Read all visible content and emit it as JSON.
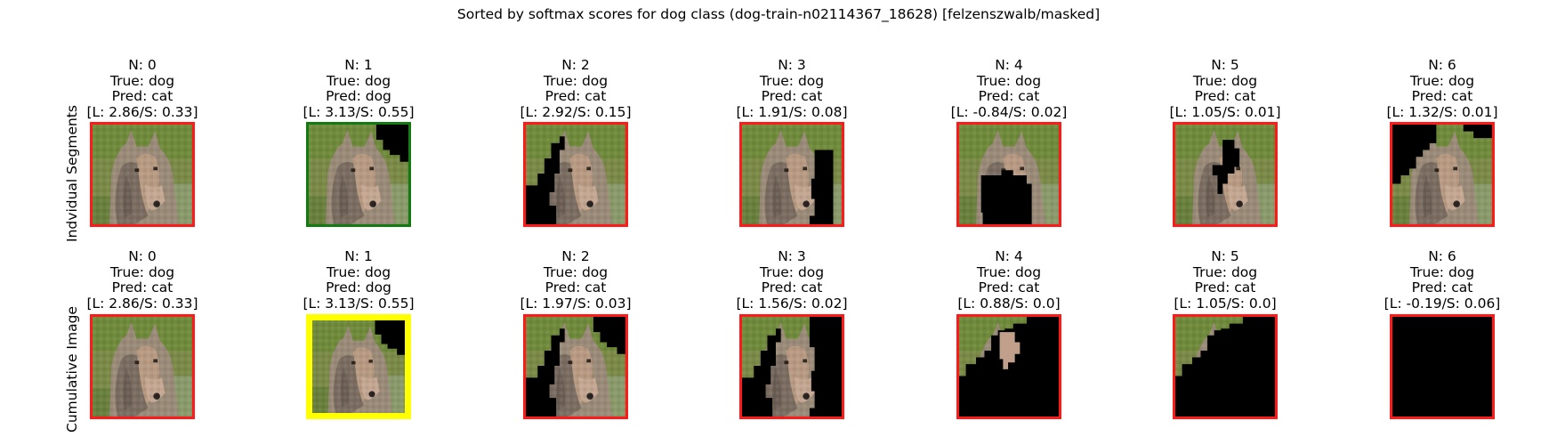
{
  "title": "Sorted by softmax scores for dog class (dog-train-n02114367_18628) [felzenszwalb/masked]",
  "row_labels": [
    "Indvidual Segments",
    "Cumulative Image"
  ],
  "colors": {
    "wrong": "#ff1a1a",
    "correct": "#117a11",
    "best": "#ffff00",
    "masked": "#000000"
  },
  "rows": [
    {
      "panels": [
        {
          "n": "N: 0",
          "true": "True: dog",
          "pred": "Pred: cat",
          "score": "[L: 2.86/S: 0.33]",
          "border": "wrong",
          "mask": "none"
        },
        {
          "n": "N: 1",
          "true": "True: dog",
          "pred": "Pred: dog",
          "score": "[L: 3.13/S: 0.55]",
          "border": "correct",
          "mask": "top-right"
        },
        {
          "n": "N: 2",
          "true": "True: dog",
          "pred": "Pred: cat",
          "score": "[L: 2.92/S: 0.15]",
          "border": "wrong",
          "mask": "left-bottom"
        },
        {
          "n": "N: 3",
          "true": "True: dog",
          "pred": "Pred: cat",
          "score": "[L: 1.91/S: 0.08]",
          "border": "wrong",
          "mask": "right"
        },
        {
          "n": "N: 4",
          "true": "True: dog",
          "pred": "Pred: cat",
          "score": "[L: -0.84/S: 0.02]",
          "border": "wrong",
          "mask": "center"
        },
        {
          "n": "N: 5",
          "true": "True: dog",
          "pred": "Pred: cat",
          "score": "[L: 1.05/S: 0.01]",
          "border": "wrong",
          "mask": "center-right"
        },
        {
          "n": "N: 6",
          "true": "True: dog",
          "pred": "Pred: cat",
          "score": "[L: 1.32/S: 0.01]",
          "border": "wrong",
          "mask": "top-left"
        }
      ]
    },
    {
      "panels": [
        {
          "n": "N: 0",
          "true": "True: dog",
          "pred": "Pred: cat",
          "score": "[L: 2.86/S: 0.33]",
          "border": "wrong",
          "mask": "none"
        },
        {
          "n": "N: 1",
          "true": "True: dog",
          "pred": "Pred: dog",
          "score": "[L: 3.13/S: 0.55]",
          "border": "best",
          "mask": "top-right"
        },
        {
          "n": "N: 2",
          "true": "True: dog",
          "pred": "Pred: cat",
          "score": "[L: 1.97/S: 0.03]",
          "border": "wrong",
          "mask": "cum-2"
        },
        {
          "n": "N: 3",
          "true": "True: dog",
          "pred": "Pred: cat",
          "score": "[L: 1.56/S: 0.02]",
          "border": "wrong",
          "mask": "cum-3"
        },
        {
          "n": "N: 4",
          "true": "True: dog",
          "pred": "Pred: cat",
          "score": "[L: 0.88/S: 0.0]",
          "border": "wrong",
          "mask": "cum-4"
        },
        {
          "n": "N: 5",
          "true": "True: dog",
          "pred": "Pred: cat",
          "score": "[L: 1.05/S: 0.0]",
          "border": "wrong",
          "mask": "cum-5"
        },
        {
          "n": "N: 6",
          "true": "True: dog",
          "pred": "Pred: cat",
          "score": "[L: -0.19/S: 0.06]",
          "border": "wrong",
          "mask": "all"
        }
      ]
    }
  ]
}
